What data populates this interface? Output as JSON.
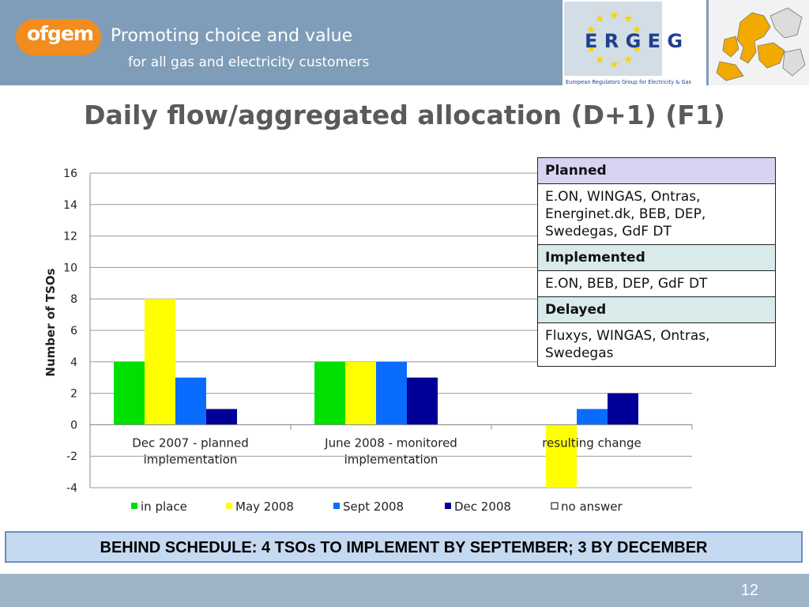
{
  "header": {
    "logo_text": "ofgem",
    "tagline_1": "Promoting choice and value",
    "tagline_2": "for all gas and electricity customers",
    "ergeg_logo": "E R G E G",
    "ergeg_caption": "European Regulators Group for Electricity & Gas",
    "colors": {
      "header_bg": "#7f9db8",
      "ofgem_orange": "#f28c1e",
      "ergeg_blue": "#1f3f8f",
      "star_yellow": "#f5d400"
    }
  },
  "slide": {
    "title": "Daily flow/aggregated allocation (D+1) (F1)",
    "banner": "BEHIND SCHEDULE: 4 TSOs TO IMPLEMENT BY SEPTEMBER; 3 BY  DECEMBER",
    "page_number": "12"
  },
  "table": {
    "planned_label": "Planned",
    "planned_value": "E.ON, WINGAS, Ontras, Energinet.dk, BEB, DEP, Swedegas, GdF DT",
    "implemented_label": "Implemented",
    "implemented_value": "E.ON, BEB, DEP, GdF DT",
    "delayed_label": "Delayed",
    "delayed_value": "Fluxys, WINGAS, Ontras, Swedegas"
  },
  "chart_data": {
    "type": "bar",
    "title": "",
    "xlabel": "",
    "ylabel": "Number  of  TSOs",
    "ylim": [
      -4,
      16
    ],
    "yticks": [
      -4,
      -2,
      0,
      2,
      4,
      6,
      8,
      10,
      12,
      14,
      16
    ],
    "grid": true,
    "legend_position": "bottom",
    "categories": [
      [
        "Dec 2007 - planned",
        "implementation"
      ],
      [
        "June 2008 - monitored",
        "implementation"
      ],
      [
        "resulting change"
      ]
    ],
    "series": [
      {
        "name": "in place",
        "color": "#00e000",
        "values": [
          4,
          4,
          0
        ]
      },
      {
        "name": "May 2008",
        "color": "#ffff00",
        "values": [
          8,
          4,
          -4
        ]
      },
      {
        "name": "Sept 2008",
        "color": "#0a6cff",
        "values": [
          3,
          4,
          1
        ]
      },
      {
        "name": "Dec 2008",
        "color": "#000099",
        "values": [
          1,
          3,
          2
        ]
      },
      {
        "name": "no answer",
        "color": "#ffffff",
        "values": [
          0,
          0,
          0
        ]
      }
    ]
  }
}
